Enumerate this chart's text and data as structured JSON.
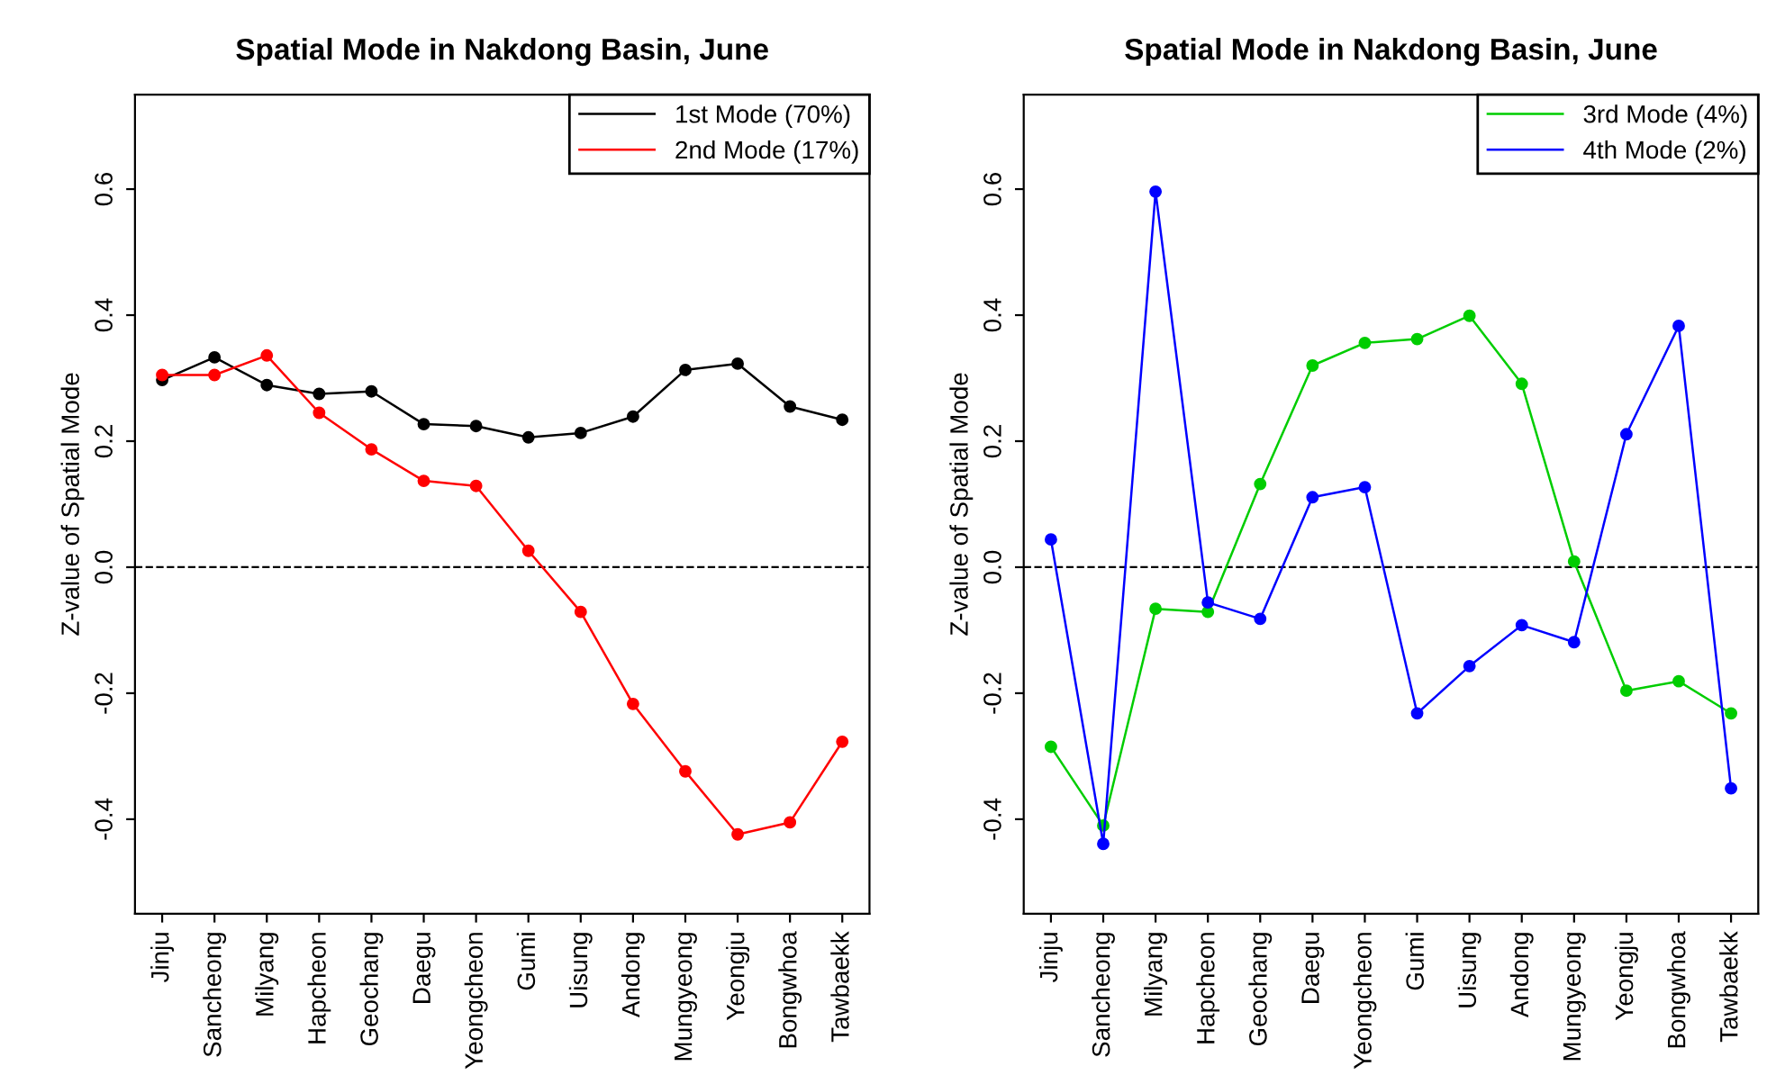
{
  "chart_data": [
    {
      "type": "line",
      "title": "Spatial Mode in Nakdong Basin, June",
      "ylabel": "Z-value of Spatial Mode",
      "categories": [
        "Jinju",
        "Sancheong",
        "Milyang",
        "Hapcheon",
        "Geochang",
        "Daegu",
        "Yeongcheon",
        "Gumi",
        "Uisung",
        "Andong",
        "Mungyeong",
        "Yeongju",
        "Bongwhoa",
        "Tawbaekk"
      ],
      "ylim": [
        -0.55,
        0.75
      ],
      "yticks": [
        -0.4,
        -0.2,
        {
          "value": 0,
          "label": "0.0"
        },
        0.2,
        0.4,
        0.6
      ],
      "series": [
        {
          "name": "1st Mode (70%)",
          "color": "#000000",
          "values": [
            0.297,
            0.333,
            0.289,
            0.275,
            0.279,
            0.227,
            0.224,
            0.206,
            0.213,
            0.239,
            0.313,
            0.323,
            0.255,
            0.234
          ]
        },
        {
          "name": "2nd Mode (17%)",
          "color": "#ff0000",
          "values": [
            0.305,
            0.305,
            0.336,
            0.245,
            0.187,
            0.137,
            0.129,
            0.026,
            -0.071,
            -0.217,
            -0.324,
            -0.424,
            -0.405,
            -0.277
          ]
        }
      ],
      "ref_lines": [
        {
          "axis": "y",
          "value": 0,
          "color": "#000000",
          "line_style": "dashed"
        }
      ],
      "marker": "circle",
      "line_style": "solid",
      "grid": false,
      "legend": "top right"
    },
    {
      "type": "line",
      "title": "Spatial Mode in Nakdong Basin, June",
      "ylabel": "Z-value of Spatial Mode",
      "categories": [
        "Jinju",
        "Sancheong",
        "Milyang",
        "Hapcheon",
        "Geochang",
        "Daegu",
        "Yeongcheon",
        "Gumi",
        "Uisung",
        "Andong",
        "Mungyeong",
        "Yeongju",
        "Bongwhoa",
        "Tawbaekk"
      ],
      "ylim": [
        -0.55,
        0.75
      ],
      "yticks": [
        -0.4,
        -0.2,
        {
          "value": 0,
          "label": "0.0"
        },
        0.2,
        0.4,
        0.6
      ],
      "series": [
        {
          "name": "3rd Mode (4%)",
          "color": "#00cd00",
          "values": [
            -0.285,
            -0.41,
            -0.066,
            -0.071,
            0.132,
            0.32,
            0.356,
            0.362,
            0.399,
            0.291,
            0.009,
            -0.196,
            -0.181,
            -0.232
          ]
        },
        {
          "name": "4th Mode (2%)",
          "color": "#0000ff",
          "values": [
            0.044,
            -0.439,
            0.596,
            -0.056,
            -0.082,
            0.111,
            0.127,
            -0.232,
            -0.157,
            -0.092,
            -0.119,
            0.211,
            0.383,
            -0.351
          ]
        }
      ],
      "ref_lines": [
        {
          "axis": "y",
          "value": 0,
          "color": "#000000",
          "line_style": "dashed"
        }
      ],
      "marker": "circle",
      "line_style": "solid",
      "grid": false,
      "legend": "top right"
    }
  ]
}
